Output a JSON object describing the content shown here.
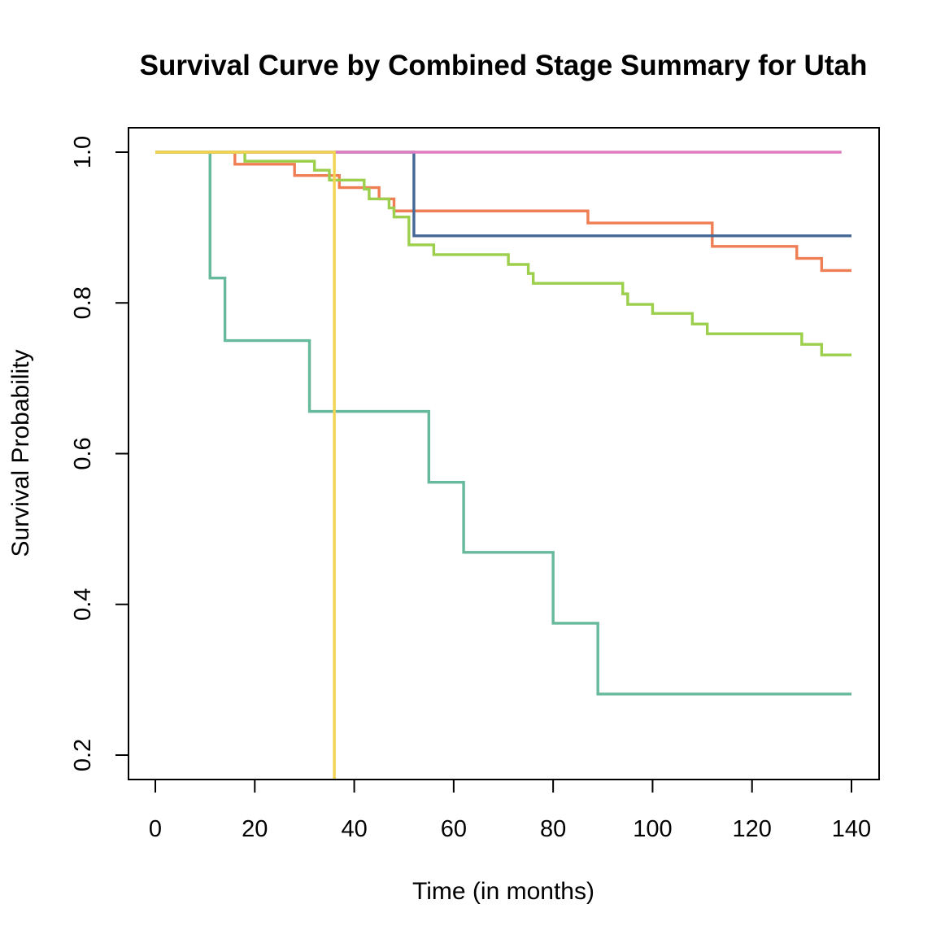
{
  "chart_data": {
    "type": "line",
    "step": true,
    "title": "Survival Curve by Combined Stage Summary for Utah",
    "xlabel": "Time (in months)",
    "ylabel": "Survival Probability",
    "xlim": [
      0,
      140
    ],
    "ylim": [
      0.2,
      1.0
    ],
    "x_ticks": [
      0,
      20,
      40,
      60,
      80,
      100,
      120,
      140
    ],
    "x_tick_labels": [
      "0",
      "20",
      "40",
      "60",
      "80",
      "100",
      "120",
      "140"
    ],
    "y_ticks": [
      0.2,
      0.4,
      0.6,
      0.8,
      1.0
    ],
    "y_tick_labels": [
      "0.2",
      "0.4",
      "0.6",
      "0.8",
      "1.0"
    ],
    "grid": false,
    "legend": "none",
    "series": [
      {
        "color": "#66b99b",
        "x": [
          0,
          11,
          14,
          31,
          55,
          62,
          80,
          89,
          140
        ],
        "y": [
          1.0,
          0.833,
          0.75,
          0.656,
          0.562,
          0.469,
          0.375,
          0.281,
          0.281
        ]
      },
      {
        "color": "#f07e55",
        "x": [
          0,
          16,
          28,
          37,
          45,
          48,
          87,
          112,
          129,
          134,
          140
        ],
        "y": [
          1.0,
          0.984,
          0.969,
          0.953,
          0.938,
          0.922,
          0.906,
          0.875,
          0.859,
          0.843,
          0.843
        ]
      },
      {
        "color": "#446796",
        "x": [
          0,
          52,
          140
        ],
        "y": [
          1.0,
          0.889,
          0.889
        ]
      },
      {
        "color": "#de7cbf",
        "x": [
          0,
          138
        ],
        "y": [
          1.0,
          1.0
        ]
      },
      {
        "color": "#9bcf4c",
        "x": [
          0,
          18,
          32,
          35,
          42,
          43,
          47,
          48,
          51,
          56,
          71,
          75,
          76,
          94,
          95,
          100,
          108,
          111,
          130,
          134,
          140
        ],
        "y": [
          1.0,
          0.988,
          0.976,
          0.963,
          0.951,
          0.938,
          0.926,
          0.914,
          0.877,
          0.864,
          0.851,
          0.839,
          0.826,
          0.812,
          0.798,
          0.786,
          0.772,
          0.759,
          0.745,
          0.731,
          0.731
        ]
      },
      {
        "color": "#f3d352",
        "x": [
          0,
          36,
          36
        ],
        "y": [
          1.0,
          1.0,
          0.0
        ]
      }
    ]
  }
}
